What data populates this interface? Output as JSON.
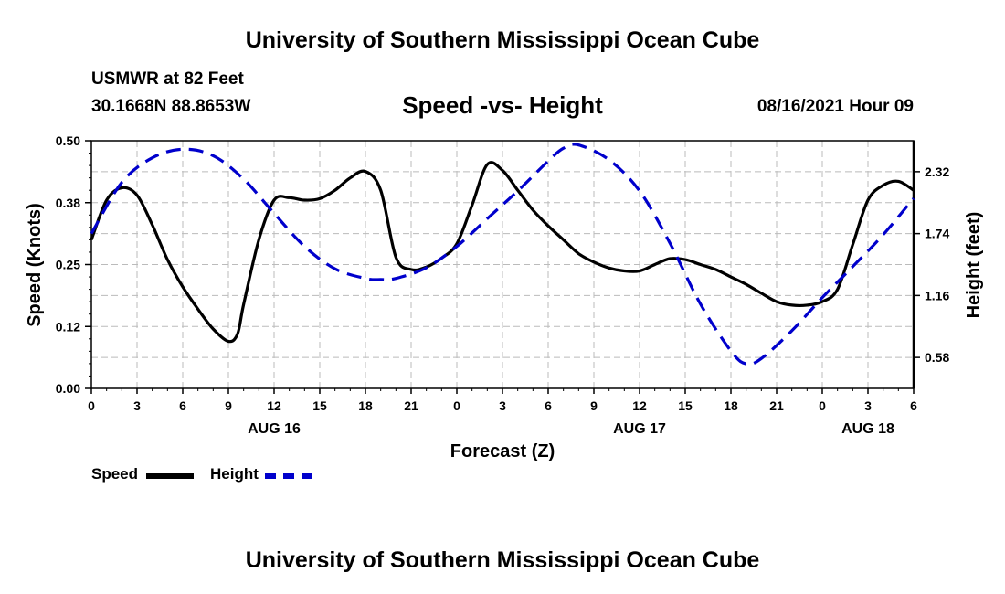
{
  "header": {
    "title": "University of Southern Mississippi Ocean Cube",
    "station": "USMWR at 82 Feet",
    "coords": "30.1668N  88.8653W",
    "subtitle": "Speed -vs- Height",
    "datetime": "08/16/2021 Hour 09"
  },
  "footer": {
    "title": "University of Southern Mississippi Ocean Cube"
  },
  "legend": {
    "speed": "Speed",
    "height": "Height"
  },
  "colors": {
    "speed": "#000000",
    "height": "#0000cc",
    "grid": "#bbbbbb"
  },
  "chart_data": {
    "type": "line",
    "title": "Speed -vs- Height",
    "xlabel": "Forecast (Z)",
    "ylabel": "Speed (Knots)",
    "y2label": "Height (feet)",
    "xlim": [
      0,
      54
    ],
    "ylim": [
      0,
      0.5
    ],
    "y2lim": [
      0.29,
      2.61
    ],
    "x_ticks": [
      0,
      3,
      6,
      9,
      12,
      15,
      18,
      21,
      24,
      27,
      30,
      33,
      36,
      39,
      42,
      45,
      48,
      51,
      54
    ],
    "x_tick_labels": [
      "0",
      "3",
      "6",
      "9",
      "12",
      "15",
      "18",
      "21",
      "0",
      "3",
      "6",
      "9",
      "12",
      "15",
      "18",
      "21",
      "0",
      "3",
      "6"
    ],
    "date_labels": [
      {
        "x": 12,
        "label": "AUG 16"
      },
      {
        "x": 36,
        "label": "AUG 17"
      },
      {
        "x": 51,
        "label": "AUG 18"
      }
    ],
    "y_ticks": [
      0,
      0.125,
      0.25,
      0.375,
      0.5
    ],
    "y_tick_labels": [
      "0.00",
      "0.12",
      "0.25",
      "0.38",
      "0.50"
    ],
    "y2_ticks": [
      0.58,
      1.16,
      1.74,
      2.32
    ],
    "y2_tick_labels": [
      "0.58",
      "1.16",
      "1.74",
      "2.32"
    ],
    "grid": true,
    "series": [
      {
        "name": "Speed",
        "axis": "left",
        "style": "solid",
        "x": [
          0,
          1,
          2,
          3,
          4,
          5,
          6,
          7,
          8,
          9,
          9.6,
          10,
          11,
          12,
          13,
          14,
          15,
          16,
          17,
          18,
          19,
          20,
          21,
          22,
          23,
          24,
          25,
          26,
          27,
          28,
          29,
          30,
          31,
          32,
          33,
          34,
          35,
          36,
          37,
          38,
          39,
          40,
          41,
          42,
          43,
          44,
          45,
          46,
          47,
          48,
          49,
          50,
          51,
          52,
          53,
          54
        ],
        "values": [
          0.3,
          0.38,
          0.405,
          0.39,
          0.33,
          0.26,
          0.205,
          0.16,
          0.12,
          0.095,
          0.11,
          0.17,
          0.3,
          0.38,
          0.385,
          0.38,
          0.383,
          0.4,
          0.425,
          0.438,
          0.4,
          0.265,
          0.24,
          0.245,
          0.263,
          0.292,
          0.37,
          0.452,
          0.44,
          0.4,
          0.36,
          0.328,
          0.3,
          0.272,
          0.255,
          0.243,
          0.237,
          0.237,
          0.25,
          0.262,
          0.26,
          0.25,
          0.24,
          0.225,
          0.21,
          0.192,
          0.175,
          0.168,
          0.168,
          0.175,
          0.2,
          0.29,
          0.38,
          0.41,
          0.418,
          0.4
        ]
      },
      {
        "name": "Height",
        "axis": "right",
        "style": "dashed",
        "x": [
          0,
          2,
          4,
          6,
          8,
          10,
          12,
          14,
          16,
          18,
          19,
          20,
          22,
          24,
          26,
          28,
          30,
          31,
          32,
          34,
          36,
          38,
          40,
          42,
          43,
          44,
          46,
          48,
          50,
          52,
          54
        ],
        "values": [
          1.74,
          2.22,
          2.45,
          2.53,
          2.47,
          2.25,
          1.93,
          1.62,
          1.41,
          1.32,
          1.31,
          1.32,
          1.42,
          1.62,
          1.88,
          2.14,
          2.42,
          2.54,
          2.57,
          2.43,
          2.14,
          1.65,
          1.08,
          0.64,
          0.52,
          0.57,
          0.83,
          1.14,
          1.43,
          1.73,
          2.07
        ]
      }
    ]
  }
}
